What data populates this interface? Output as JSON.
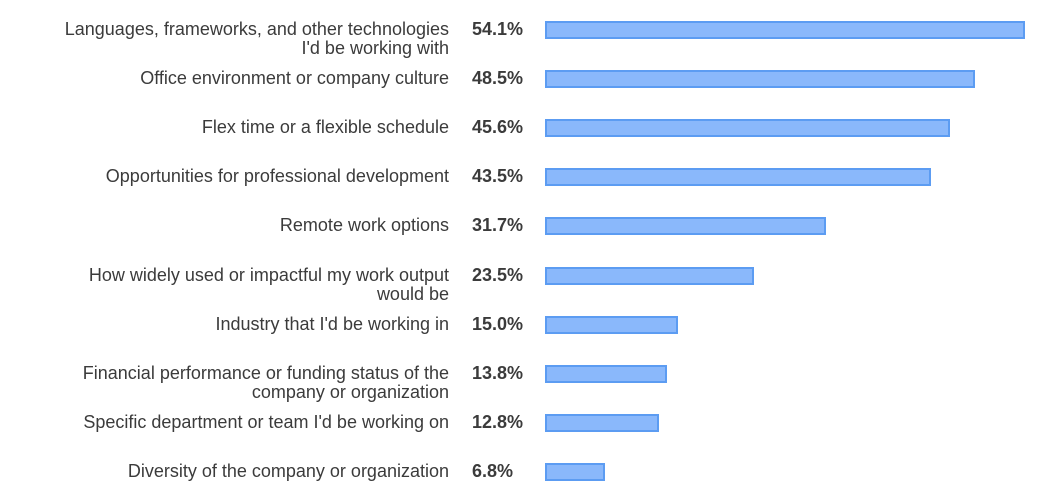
{
  "chart_data": {
    "type": "bar",
    "orientation": "horizontal",
    "categories": [
      "Languages, frameworks, and other technologies I'd be working with",
      "Office environment or company culture",
      "Flex time or a flexible schedule",
      "Opportunities for professional development",
      "Remote work options",
      "How widely used or impactful my work output would be",
      "Industry that I'd be working in",
      "Financial performance or funding status of the company or organization",
      "Specific department or team I'd be working on",
      "Diversity of the company or organization"
    ],
    "category_lines": [
      [
        "Languages, frameworks, and other technologies",
        "I'd be working with"
      ],
      [
        "Office environment or company culture"
      ],
      [
        "Flex time or a flexible schedule"
      ],
      [
        "Opportunities for professional development"
      ],
      [
        "Remote work options"
      ],
      [
        "How widely used or impactful my work output",
        "would be"
      ],
      [
        "Industry that I'd be working in"
      ],
      [
        "Financial performance or funding status of the",
        "company or organization"
      ],
      [
        "Specific department or team I'd be working on"
      ],
      [
        "Diversity of the company or organization"
      ]
    ],
    "values": [
      54.1,
      48.5,
      45.6,
      43.5,
      31.7,
      23.5,
      15.0,
      13.8,
      12.8,
      6.8
    ],
    "value_labels": [
      "54.1%",
      "48.5%",
      "45.6%",
      "43.5%",
      "31.7%",
      "23.5%",
      "15.0%",
      "13.8%",
      "12.8%",
      "6.8%"
    ],
    "title": "",
    "xlabel": "",
    "ylabel": "",
    "grid": false,
    "legend": "none",
    "colors": {
      "bar_fill": "#8ab8fb",
      "bar_border": "#5c9cf2",
      "text": "#3b3b3b"
    }
  }
}
